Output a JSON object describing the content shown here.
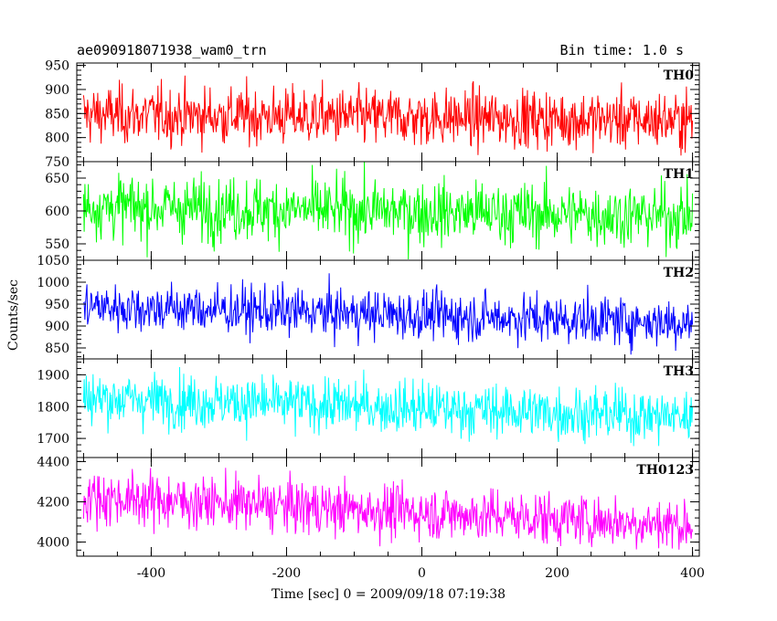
{
  "header": {
    "title": "ae090918071938_wam0_trn",
    "bin_time": "Bin time: 1.0 s"
  },
  "chart_data": {
    "type": "line",
    "xlabel": "Time [sec] 0 = 2009/09/18 07:19:38",
    "ylabel": "Counts/sec",
    "xlim": [
      -510,
      410
    ],
    "xticks": [
      -400,
      -200,
      0,
      200,
      400
    ],
    "x_range": [
      -500,
      400
    ],
    "grid": false,
    "panels": [
      {
        "name": "TH0",
        "color": "#ff0000",
        "ylim": [
          750,
          955
        ],
        "yticks": [
          750,
          800,
          850,
          900,
          950
        ],
        "mean_start": 848,
        "mean_end": 836,
        "noise_sd": 30
      },
      {
        "name": "TH1",
        "color": "#00ff00",
        "ylim": [
          525,
          675
        ],
        "yticks": [
          550,
          600,
          650
        ],
        "mean_start": 607,
        "mean_end": 592,
        "noise_sd": 24
      },
      {
        "name": "TH2",
        "color": "#0000ff",
        "ylim": [
          825,
          1050
        ],
        "yticks": [
          850,
          900,
          950,
          1000,
          1050
        ],
        "mean_start": 945,
        "mean_end": 908,
        "noise_sd": 28
      },
      {
        "name": "TH3",
        "color": "#00ffff",
        "ylim": [
          1640,
          1950
        ],
        "yticks": [
          1700,
          1800,
          1900
        ],
        "mean_start": 1828,
        "mean_end": 1768,
        "noise_sd": 42
      },
      {
        "name": "TH0123",
        "color": "#ff00ff",
        "ylim": [
          3930,
          4420
        ],
        "yticks": [
          4000,
          4200,
          4400
        ],
        "mean_start": 4225,
        "mean_end": 4085,
        "noise_sd": 66
      }
    ]
  }
}
